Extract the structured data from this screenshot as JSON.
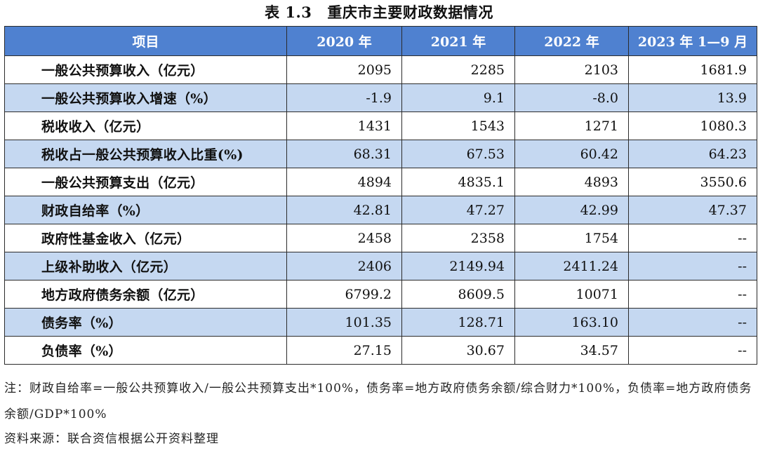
{
  "caption": {
    "number": "表 1.3",
    "title": "重庆市主要财政数据情况"
  },
  "table": {
    "headers": [
      "项目",
      "2020 年",
      "2021 年",
      "2022 年",
      "2023 年 1—9 月"
    ],
    "rows": [
      [
        "一般公共预算收入（亿元）",
        "2095",
        "2285",
        "2103",
        "1681.9"
      ],
      [
        "一般公共预算收入增速（%）",
        "-1.9",
        "9.1",
        "-8.0",
        "13.9"
      ],
      [
        "税收收入（亿元）",
        "1431",
        "1543",
        "1271",
        "1080.3"
      ],
      [
        "税收占一般公共预算收入比重(%)",
        "68.31",
        "67.53",
        "60.42",
        "64.23"
      ],
      [
        "一般公共预算支出（亿元）",
        "4894",
        "4835.1",
        "4893",
        "3550.6"
      ],
      [
        "财政自给率（%）",
        "42.81",
        "47.27",
        "42.99",
        "47.37"
      ],
      [
        "政府性基金收入（亿元）",
        "2458",
        "2358",
        "1754",
        "--"
      ],
      [
        "上级补助收入（亿元）",
        "2406",
        "2149.94",
        "2411.24",
        "--"
      ],
      [
        "地方政府债务余额（亿元）",
        "6799.2",
        "8609.5",
        "10071",
        "--"
      ],
      [
        "债务率（%）",
        "101.35",
        "128.71",
        "163.10",
        "--"
      ],
      [
        "负债率（%）",
        "27.15",
        "30.67",
        "34.57",
        "--"
      ]
    ]
  },
  "notes": {
    "formula": "注：财政自给率=一般公共预算收入/一般公共预算支出*100%，债务率=地方政府债务余额/综合财力*100%，负债率=地方政府债务余额/GDP*100%",
    "source": "资料来源：联合资信根据公开资料整理"
  },
  "colors": {
    "header_bg": "#4f81d0",
    "shaded_row_bg": "#c5d8f1",
    "header_text": "#ffffff"
  }
}
